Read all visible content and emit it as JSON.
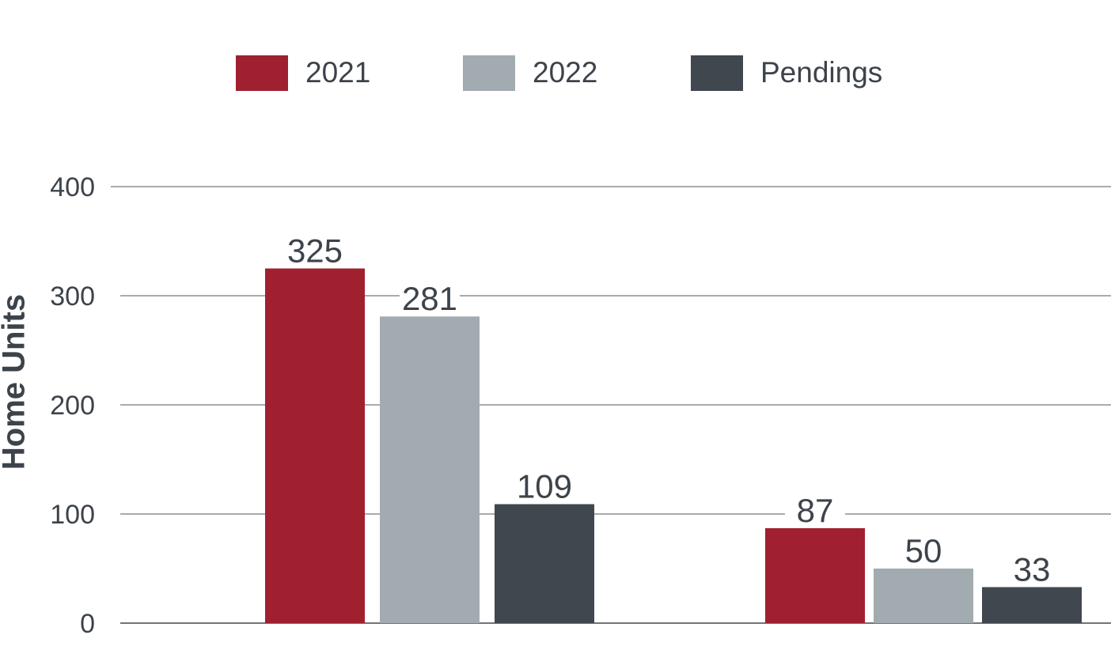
{
  "chart_data": {
    "type": "bar",
    "ylabel": "Home Units",
    "ylim": [
      0,
      400
    ],
    "yticks": [
      0,
      100,
      200,
      300,
      400
    ],
    "grid": true,
    "legend_placement": "top-center",
    "categories": [
      "",
      ""
    ],
    "series": [
      {
        "name": "2021",
        "color": "#a02030",
        "values": [
          325,
          87
        ]
      },
      {
        "name": "2022",
        "color": "#a2abb0",
        "values": [
          281,
          50
        ]
      },
      {
        "name": "Pendings",
        "color": "#40474e",
        "values": [
          109,
          33
        ]
      }
    ]
  }
}
